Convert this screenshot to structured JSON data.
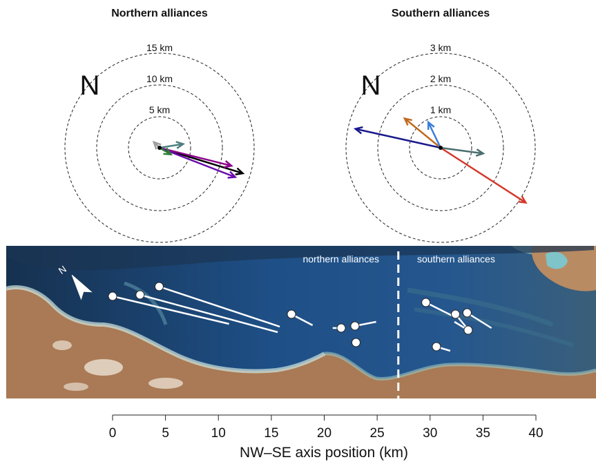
{
  "panels": [
    {
      "title": "Northern alliances",
      "rings": [
        {
          "label": "5 km"
        },
        {
          "label": "10 km"
        },
        {
          "label": "15 km"
        }
      ],
      "north_label": "N",
      "arrows": [
        {
          "color": "#000000",
          "dx": 0.88,
          "dy": 0.27
        },
        {
          "color": "#8B008B",
          "dx": 0.76,
          "dy": 0.19
        },
        {
          "color": "#6A0DAD",
          "dx": 0.8,
          "dy": 0.31
        },
        {
          "color": "#4F7F7F",
          "dx": 0.25,
          "dy": -0.04
        },
        {
          "color": "#2E7D32",
          "dx": 0.12,
          "dy": 0.07
        },
        {
          "color": "#9E9E9E",
          "dx": -0.06,
          "dy": -0.06
        }
      ]
    },
    {
      "title": "Southern alliances",
      "rings": [
        {
          "label": "1 km"
        },
        {
          "label": "2 km"
        },
        {
          "label": "3 km"
        }
      ],
      "north_label": "N",
      "arrows": [
        {
          "color": "#1A1A8C",
          "dx": -0.9,
          "dy": -0.2
        },
        {
          "color": "#D33A2C",
          "dx": 0.9,
          "dy": 0.58
        },
        {
          "color": "#C06A1E",
          "dx": -0.38,
          "dy": -0.31
        },
        {
          "color": "#3C7DD9",
          "dx": -0.13,
          "dy": -0.27
        },
        {
          "color": "#4A6E6E",
          "dx": 0.45,
          "dy": 0.06
        }
      ]
    }
  ],
  "map": {
    "labels": {
      "northern": "northern alliances",
      "southern": "southern alliances"
    },
    "divider_x_km": 27,
    "sites": [
      {
        "x_km": 0.0,
        "dx_km": 11.0,
        "dy": 0.2
      },
      {
        "x_km": 2.6,
        "dx_km": 13.0,
        "dy": 0.27
      },
      {
        "x_km": 4.4,
        "dx_km": 11.4,
        "dy": 0.29
      },
      {
        "x_km": 16.9,
        "dx_km": 2.0,
        "dy": 0.08
      },
      {
        "x_km": 21.6,
        "dx_km": -0.8,
        "dy": 0.0
      },
      {
        "x_km": 22.9,
        "dx_km": 2.0,
        "dy": -0.03
      },
      {
        "x_km": 23.0,
        "dx_km": 0.0,
        "dy": 0.0
      },
      {
        "x_km": 29.6,
        "dx_km": 2.6,
        "dy": 0.1
      },
      {
        "x_km": 32.4,
        "dx_km": 1.3,
        "dy": 0.12
      },
      {
        "x_km": 33.5,
        "dx_km": 2.3,
        "dy": 0.11
      },
      {
        "x_km": 33.6,
        "dx_km": -1.3,
        "dy": -0.06
      },
      {
        "x_km": 30.6,
        "dx_km": 1.3,
        "dy": 0.03
      }
    ]
  },
  "axis": {
    "title": "NW–SE axis position (km)",
    "ticks": [
      "0",
      "5",
      "10",
      "15",
      "20",
      "25",
      "30",
      "35",
      "40"
    ]
  }
}
